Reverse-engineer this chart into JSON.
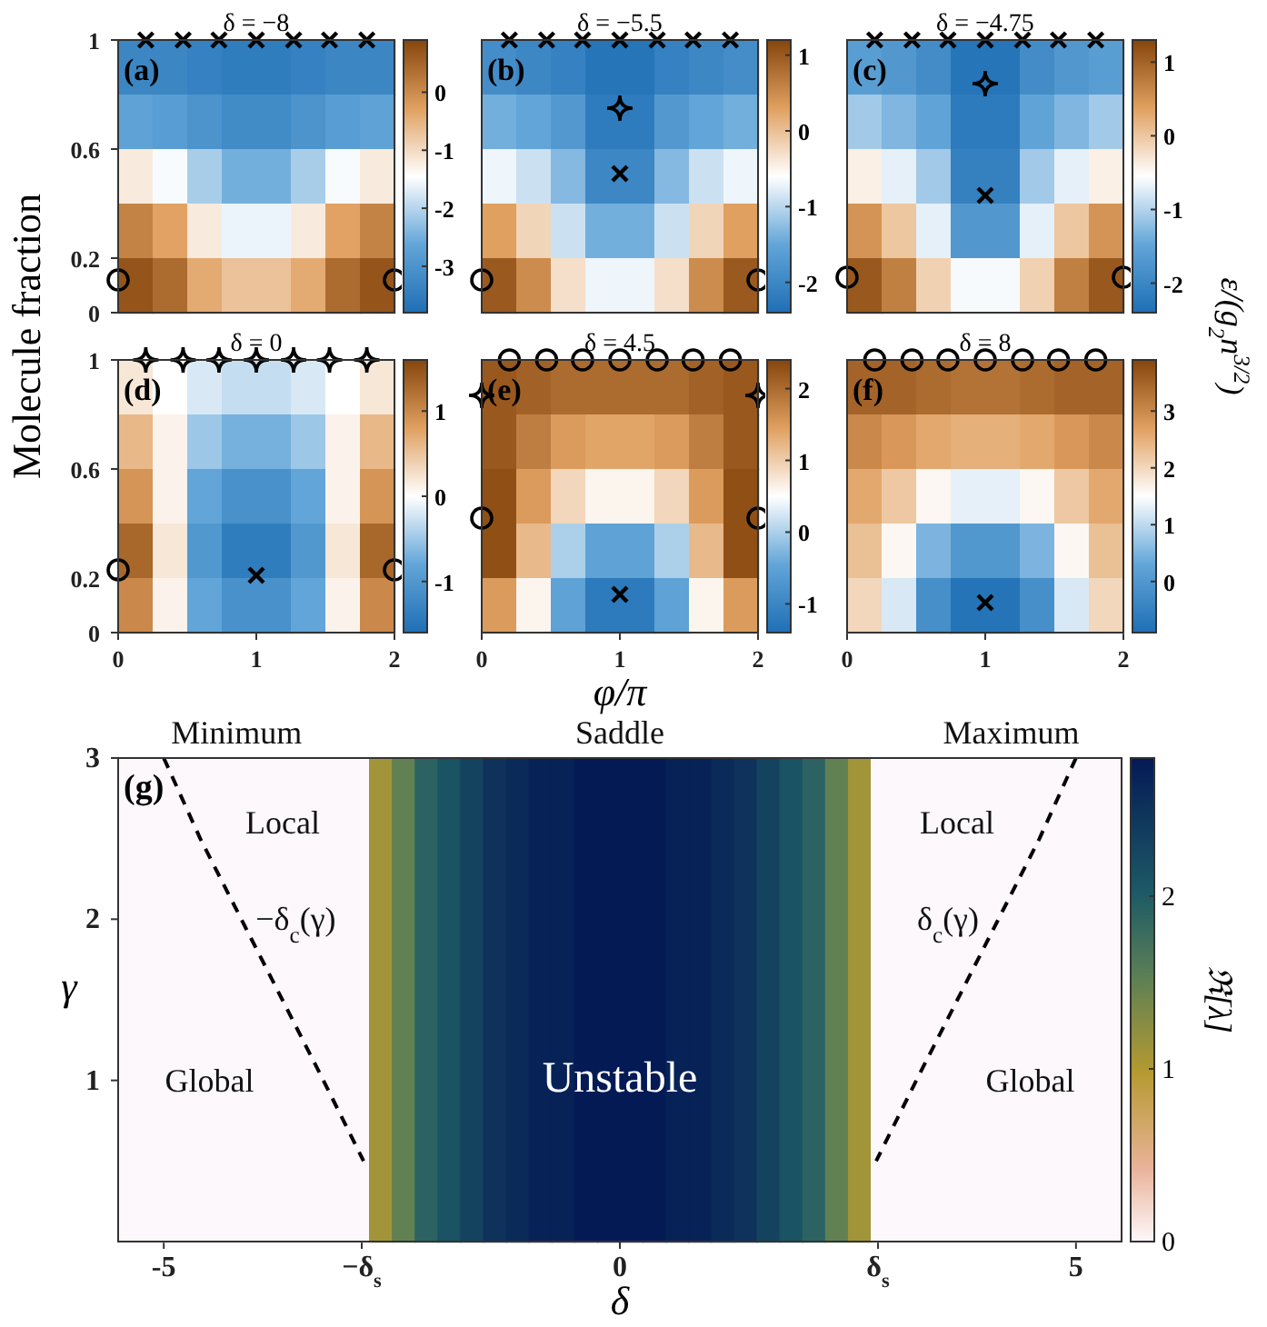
{
  "chart_data": [
    {
      "type": "heatmap",
      "title": "δ = −8",
      "annotations": [
        "(a)"
      ],
      "x": [
        0.125,
        0.375,
        0.625,
        0.875,
        1.125,
        1.375,
        1.625,
        1.875
      ],
      "y": [
        0.9,
        0.7,
        0.5,
        0.3,
        0.1
      ],
      "xlim": [
        0,
        2
      ],
      "xticks": [
        0,
        1,
        2
      ],
      "ylim": [
        0,
        1
      ],
      "yticks": [
        0,
        0.2,
        0.6,
        1
      ],
      "tick_labels": "y",
      "clim": [
        -3.8,
        0.9
      ],
      "cticks": [
        -3,
        -2,
        -1,
        0
      ],
      "cells": [
        [
          -3.3,
          -3.3,
          -3.4,
          -3.5,
          -3.5,
          -3.4,
          -3.3,
          -3.3
        ],
        [
          -2.7,
          -2.8,
          -3.0,
          -3.2,
          -3.2,
          -3.0,
          -2.8,
          -2.7
        ],
        [
          -1.2,
          -1.5,
          -2.1,
          -2.5,
          -2.5,
          -2.1,
          -1.5,
          -1.2
        ],
        [
          0.1,
          -0.3,
          -1.2,
          -1.6,
          -1.6,
          -1.2,
          -0.3,
          0.1
        ],
        [
          0.7,
          0.4,
          -0.4,
          -0.7,
          -0.7,
          -0.4,
          0.4,
          0.7
        ]
      ],
      "series": [
        {
          "type": "scatter",
          "marker": "cross",
          "color": "#000000",
          "x": [
            0.2,
            0.47,
            0.73,
            1,
            1.27,
            1.53,
            1.8
          ],
          "values": [
            1,
            1,
            1,
            1,
            1,
            1,
            1
          ]
        },
        {
          "type": "scatter",
          "marker": "circle",
          "color": "#000000",
          "x": [
            0,
            2
          ],
          "values": [
            0.12,
            0.12
          ]
        }
      ]
    },
    {
      "type": "heatmap",
      "title": "δ = −5.5",
      "annotations": [
        "(b)"
      ],
      "x": [
        0.125,
        0.375,
        0.625,
        0.875,
        1.125,
        1.375,
        1.625,
        1.875
      ],
      "y": [
        0.9,
        0.7,
        0.5,
        0.3,
        0.1
      ],
      "xlim": [
        0,
        2
      ],
      "xticks": [
        0,
        1,
        2
      ],
      "ylim": [
        0,
        1
      ],
      "yticks": [
        0,
        0.2,
        0.6,
        1
      ],
      "tick_labels": false,
      "clim": [
        -2.4,
        1.2
      ],
      "cticks": [
        -2,
        -1,
        0,
        1
      ],
      "cells": [
        [
          -1.9,
          -2.0,
          -2.1,
          -2.3,
          -2.3,
          -2.1,
          -2.0,
          -1.9
        ],
        [
          -1.4,
          -1.5,
          -1.7,
          -2.2,
          -2.2,
          -1.7,
          -1.5,
          -1.4
        ],
        [
          -0.7,
          -0.9,
          -1.3,
          -2.0,
          -2.0,
          -1.3,
          -0.9,
          -0.7
        ],
        [
          0.3,
          -0.2,
          -0.9,
          -1.4,
          -1.4,
          -0.9,
          -0.2,
          0.3
        ],
        [
          1.0,
          0.5,
          -0.3,
          -0.7,
          -0.7,
          -0.3,
          0.5,
          1.0
        ]
      ],
      "series": [
        {
          "type": "scatter",
          "marker": "cross",
          "color": "#000000",
          "x": [
            0.2,
            0.47,
            0.73,
            1,
            1.27,
            1.53,
            1.8,
            1
          ],
          "values": [
            1,
            1,
            1,
            1,
            1,
            1,
            1,
            0.51
          ]
        },
        {
          "type": "scatter",
          "marker": "diamond",
          "color": "#000000",
          "x": [
            1
          ],
          "values": [
            0.75
          ]
        },
        {
          "type": "scatter",
          "marker": "circle",
          "color": "#000000",
          "x": [
            0,
            2
          ],
          "values": [
            0.12,
            0.12
          ]
        }
      ]
    },
    {
      "type": "heatmap",
      "title": "δ = −4.75",
      "annotations": [
        "(c)"
      ],
      "x": [
        0.125,
        0.375,
        0.625,
        0.875,
        1.125,
        1.375,
        1.625,
        1.875
      ],
      "y": [
        0.9,
        0.7,
        0.5,
        0.3,
        0.1
      ],
      "xlim": [
        0,
        2
      ],
      "xticks": [
        0,
        1,
        2
      ],
      "ylim": [
        0,
        1
      ],
      "yticks": [
        0,
        0.2,
        0.6,
        1
      ],
      "tick_labels": false,
      "clim": [
        -2.4,
        1.3
      ],
      "cticks": [
        -2,
        -1,
        0,
        1
      ],
      "cells": [
        [
          -1.6,
          -1.7,
          -1.9,
          -2.3,
          -2.3,
          -1.9,
          -1.7,
          -1.6
        ],
        [
          -1.1,
          -1.3,
          -1.5,
          -2.2,
          -2.2,
          -1.5,
          -1.3,
          -1.1
        ],
        [
          -0.4,
          -0.7,
          -1.1,
          -2.1,
          -2.1,
          -1.1,
          -0.7,
          -0.4
        ],
        [
          0.5,
          0,
          -0.7,
          -1.7,
          -1.7,
          -0.7,
          0,
          0.5
        ],
        [
          1.1,
          0.7,
          -0.1,
          -0.6,
          -0.6,
          -0.1,
          0.7,
          1.1
        ]
      ],
      "series": [
        {
          "type": "scatter",
          "marker": "cross",
          "color": "#000000",
          "x": [
            0.2,
            0.47,
            0.73,
            1,
            1.27,
            1.53,
            1.8,
            1
          ],
          "values": [
            1,
            1,
            1,
            1,
            1,
            1,
            1,
            0.43
          ]
        },
        {
          "type": "scatter",
          "marker": "diamond",
          "color": "#000000",
          "x": [
            1
          ],
          "values": [
            0.84
          ]
        },
        {
          "type": "scatter",
          "marker": "circle",
          "color": "#000000",
          "x": [
            0,
            2
          ],
          "values": [
            0.13,
            0.13
          ]
        }
      ]
    },
    {
      "type": "heatmap",
      "title": "δ = 0",
      "ylabel": "Molecule fraction",
      "annotations": [
        "(d)"
      ],
      "x": [
        0.125,
        0.375,
        0.625,
        0.875,
        1.125,
        1.375,
        1.625,
        1.875
      ],
      "y": [
        0.9,
        0.7,
        0.5,
        0.3,
        0.1
      ],
      "xlim": [
        0,
        2
      ],
      "xticks": [
        0,
        1,
        2
      ],
      "ylim": [
        0,
        1
      ],
      "yticks": [
        0,
        0.2,
        0.6,
        1
      ],
      "clim": [
        -1.6,
        1.6
      ],
      "cticks": [
        -1,
        0,
        1
      ],
      "cells": [
        [
          0.2,
          0,
          -0.2,
          -0.3,
          -0.3,
          -0.2,
          0,
          0.2
        ],
        [
          0.6,
          0.1,
          -0.5,
          -0.7,
          -0.7,
          -0.5,
          0.1,
          0.6
        ],
        [
          0.9,
          0.1,
          -0.8,
          -1.1,
          -1.1,
          -0.8,
          0.1,
          0.9
        ],
        [
          1.3,
          0.2,
          -1.0,
          -1.4,
          -1.4,
          -1.0,
          0.2,
          1.3
        ],
        [
          1.0,
          0.1,
          -0.8,
          -1.1,
          -1.1,
          -0.8,
          0.1,
          1.0
        ]
      ],
      "series": [
        {
          "type": "scatter",
          "marker": "diamond",
          "color": "#000000",
          "x": [
            0.2,
            0.47,
            0.73,
            1,
            1.27,
            1.53,
            1.8
          ],
          "values": [
            1,
            1,
            1,
            1,
            1,
            1,
            1
          ]
        },
        {
          "type": "scatter",
          "marker": "circle",
          "color": "#000000",
          "x": [
            0,
            2
          ],
          "values": [
            0.23,
            0.23
          ]
        },
        {
          "type": "scatter",
          "marker": "cross",
          "color": "#000000",
          "x": [
            1
          ],
          "values": [
            0.21
          ]
        }
      ]
    },
    {
      "type": "heatmap",
      "title": "δ = 4.5",
      "xlabel": "φ/π",
      "annotations": [
        "(e)"
      ],
      "x": [
        0.125,
        0.375,
        0.625,
        0.875,
        1.125,
        1.375,
        1.625,
        1.875
      ],
      "y": [
        0.9,
        0.7,
        0.5,
        0.3,
        0.1
      ],
      "xlim": [
        0,
        2
      ],
      "xticks": [
        0,
        1,
        2
      ],
      "ylim": [
        0,
        1
      ],
      "yticks": [
        0,
        0.2,
        0.6,
        1
      ],
      "tick_labels": "x",
      "clim": [
        -1.4,
        2.4
      ],
      "cticks": [
        -1,
        0,
        1,
        2
      ],
      "cells": [
        [
          2.2,
          2.1,
          2.0,
          2.0,
          2.0,
          2.0,
          2.1,
          2.2
        ],
        [
          2.2,
          1.8,
          1.5,
          1.4,
          1.4,
          1.5,
          1.8,
          2.2
        ],
        [
          2.3,
          1.5,
          0.9,
          0.6,
          0.6,
          0.9,
          1.5,
          2.3
        ],
        [
          2.3,
          1.2,
          0,
          -0.5,
          -0.5,
          0,
          1.2,
          2.3
        ],
        [
          1.5,
          0.6,
          -0.5,
          -1.2,
          -1.2,
          -0.5,
          0.6,
          1.5
        ]
      ],
      "series": [
        {
          "type": "scatter",
          "marker": "circle",
          "color": "#000000",
          "x": [
            0.2,
            0.47,
            0.73,
            1,
            1.27,
            1.53,
            1.8,
            0,
            2
          ],
          "values": [
            1,
            1,
            1,
            1,
            1,
            1,
            1,
            0.42,
            0.42
          ]
        },
        {
          "type": "scatter",
          "marker": "diamond",
          "color": "#000000",
          "x": [
            0,
            2
          ],
          "values": [
            0.87,
            0.87
          ]
        },
        {
          "type": "scatter",
          "marker": "cross",
          "color": "#000000",
          "x": [
            1
          ],
          "values": [
            0.14
          ]
        }
      ]
    },
    {
      "type": "heatmap",
      "title": "δ = 8",
      "clabel": "ε/(g$_{2}$n$^{3/2}$)",
      "annotations": [
        "(f)"
      ],
      "x": [
        0.125,
        0.375,
        0.625,
        0.875,
        1.125,
        1.375,
        1.625,
        1.875
      ],
      "y": [
        0.9,
        0.7,
        0.5,
        0.3,
        0.1
      ],
      "xlim": [
        0,
        2
      ],
      "xticks": [
        0,
        1,
        2
      ],
      "ylim": [
        0,
        1
      ],
      "yticks": [
        0,
        0.2,
        0.6,
        1
      ],
      "tick_labels": "x",
      "clim": [
        -0.9,
        3.9
      ],
      "cticks": [
        0,
        1,
        2,
        3
      ],
      "cells": [
        [
          3.5,
          3.5,
          3.4,
          3.3,
          3.3,
          3.4,
          3.5,
          3.5
        ],
        [
          3.0,
          2.8,
          2.6,
          2.5,
          2.5,
          2.6,
          2.8,
          3.0
        ],
        [
          2.6,
          2.2,
          1.6,
          1.3,
          1.3,
          1.6,
          2.2,
          2.6
        ],
        [
          2.3,
          1.6,
          0.5,
          0,
          0,
          0.5,
          1.6,
          2.3
        ],
        [
          2.0,
          1.2,
          -0.2,
          -0.8,
          -0.8,
          -0.2,
          1.2,
          2.0
        ]
      ],
      "series": [
        {
          "type": "scatter",
          "marker": "circle",
          "color": "#000000",
          "x": [
            0.2,
            0.47,
            0.73,
            1,
            1.27,
            1.53,
            1.8
          ],
          "values": [
            1,
            1,
            1,
            1,
            1,
            1,
            1
          ]
        },
        {
          "type": "scatter",
          "marker": "cross",
          "color": "#000000",
          "x": [
            1
          ],
          "values": [
            0.11
          ]
        }
      ]
    },
    {
      "type": "heatmap",
      "xlabel": "δ",
      "ylabel": "γ",
      "clabel": "ℜ[λ]",
      "annotations": [
        "(g)",
        "Minimum",
        "Saddle",
        "Maximum",
        "Local",
        "Local",
        "Global",
        "Global",
        "Unstable",
        "−δ$_{c}$(γ)",
        "δ$_{c}$(γ)"
      ],
      "x": [
        -5.375,
        -5.125,
        -4.875,
        -4.625,
        -4.375,
        -4.125,
        -3.875,
        -3.625,
        -3.375,
        -3.125,
        -2.875,
        -2.625,
        -2.375,
        -2.125,
        -1.875,
        -1.625,
        -1.375,
        -1.125,
        -0.875,
        -0.625,
        -0.375,
        -0.125,
        0.125,
        0.375,
        0.625,
        0.875,
        1.125,
        1.375,
        1.625,
        1.875,
        2.125,
        2.375,
        2.625,
        2.875,
        3.125,
        3.375,
        3.625,
        3.875,
        4.125,
        4.375,
        4.625,
        4.875,
        5.125,
        5.375
      ],
      "y": [
        2.25,
        0.75
      ],
      "xlim": [
        -5.5,
        5.5
      ],
      "xticks": [
        -5,
        {
          "value": -2.83,
          "label": "−δ$_{s}$"
        },
        0,
        {
          "value": 2.83,
          "label": "δ$_{s}$"
        },
        5
      ],
      "ylim": [
        0,
        3
      ],
      "yticks": [
        1,
        2,
        3
      ],
      "clim": [
        0,
        2.8
      ],
      "cticks": [
        0,
        1,
        2
      ],
      "cells": [
        [
          0,
          0,
          0,
          0,
          0,
          0,
          0,
          0,
          0,
          0,
          0,
          1.1,
          1.5,
          1.9,
          2.1,
          2.3,
          2.5,
          2.6,
          2.7,
          2.7,
          2.8,
          2.8,
          2.8,
          2.8,
          2.7,
          2.7,
          2.6,
          2.5,
          2.3,
          2.1,
          1.9,
          1.5,
          1.1,
          0,
          0,
          0,
          0,
          0,
          0,
          0,
          0,
          0,
          0,
          0
        ],
        [
          0,
          0,
          0,
          0,
          0,
          0,
          0,
          0,
          0,
          0,
          0,
          1.1,
          1.5,
          1.9,
          2.1,
          2.3,
          2.5,
          2.6,
          2.7,
          2.7,
          2.8,
          2.8,
          2.8,
          2.8,
          2.7,
          2.7,
          2.6,
          2.5,
          2.3,
          2.1,
          1.9,
          1.5,
          1.1,
          0,
          0,
          0,
          0,
          0,
          0,
          0,
          0,
          0,
          0,
          0
        ]
      ],
      "series": [
        {
          "type": "line",
          "line_style": "dashed",
          "color": "#000000",
          "x": [
            -5,
            -4.6,
            -4.15,
            -3.7,
            -3.25,
            -2.81
          ],
          "values": [
            3,
            2.5,
            2,
            1.5,
            1,
            0.5
          ]
        },
        {
          "type": "line",
          "line_style": "dashed",
          "color": "#000000",
          "x": [
            5,
            4.6,
            4.15,
            3.7,
            3.25,
            2.81
          ],
          "values": [
            3,
            2.5,
            2,
            1.5,
            1,
            0.5
          ]
        }
      ]
    }
  ]
}
